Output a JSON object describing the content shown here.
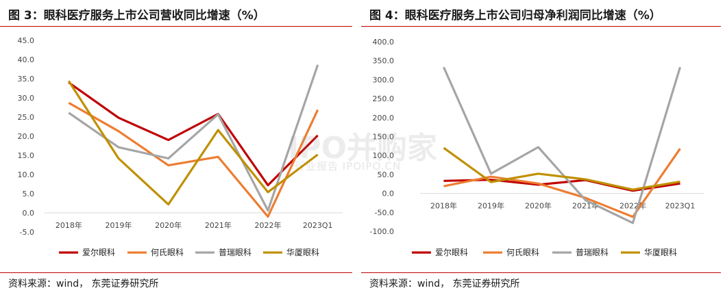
{
  "watermark": {
    "main": "IPO并购家",
    "sub": "行业报告 IPOIPO.CN"
  },
  "chart_data": [
    {
      "type": "line",
      "title": "图 3：眼科医疗服务上市公司营收同比增速（%）",
      "source": "资料来源：wind， 东莞证券研究所",
      "categories": [
        "2018年",
        "2019年",
        "2020年",
        "2021年",
        "2022年",
        "2023Q1"
      ],
      "ylim": [
        -5,
        45
      ],
      "yticks": [
        "-5.0",
        "0.0",
        "5.0",
        "10.0",
        "15.0",
        "20.0",
        "25.0",
        "30.0",
        "35.0",
        "40.0",
        "45.0"
      ],
      "ytick_values": [
        -5,
        0,
        5,
        10,
        15,
        20,
        25,
        30,
        35,
        40,
        45
      ],
      "grid": false,
      "legend": "bottom",
      "series": [
        {
          "name": "爱尔眼科",
          "color": "#c00000",
          "values": [
            34.0,
            24.8,
            19.0,
            25.8,
            7.2,
            20.2
          ]
        },
        {
          "name": "何氏眼科",
          "color": "#ed7d31",
          "values": [
            28.7,
            21.3,
            12.4,
            14.6,
            -1.0,
            26.9
          ]
        },
        {
          "name": "普瑞眼科",
          "color": "#a5a5a5",
          "values": [
            26.1,
            17.1,
            14.2,
            25.7,
            0.6,
            38.6
          ]
        },
        {
          "name": "华厦眼科",
          "color": "#bf9000",
          "values": [
            34.4,
            14.2,
            2.2,
            21.6,
            5.4,
            15.2
          ]
        }
      ]
    },
    {
      "type": "line",
      "title": "图 4：眼科医疗服务上市公司归母净利润同比增速（%）",
      "source": "资料来源：wind， 东莞证券研究所",
      "categories": [
        "2018年",
        "2019年",
        "2020年",
        "2021年",
        "2022年",
        "2023Q1"
      ],
      "ylim": [
        -100,
        400
      ],
      "yticks": [
        "-100.0",
        "-50.0",
        "0.0",
        "50.0",
        "100.0",
        "150.0",
        "200.0",
        "250.0",
        "300.0",
        "350.0",
        "400.0"
      ],
      "ytick_values": [
        -100,
        -50,
        0,
        50,
        100,
        150,
        200,
        250,
        300,
        350,
        400
      ],
      "grid": false,
      "legend": "bottom",
      "series": [
        {
          "name": "爱尔眼科",
          "color": "#c00000",
          "values": [
            33,
            36,
            23,
            35,
            7,
            26
          ]
        },
        {
          "name": "何氏眼科",
          "color": "#ed7d31",
          "values": [
            19,
            44,
            26,
            -12,
            -62,
            118
          ]
        },
        {
          "name": "普瑞眼科",
          "color": "#a5a5a5",
          "values": [
            333,
            52,
            122,
            -18,
            -78,
            333
          ]
        },
        {
          "name": "华厦眼科",
          "color": "#bf9000",
          "values": [
            120,
            30,
            52,
            37,
            10,
            31
          ]
        }
      ]
    }
  ]
}
